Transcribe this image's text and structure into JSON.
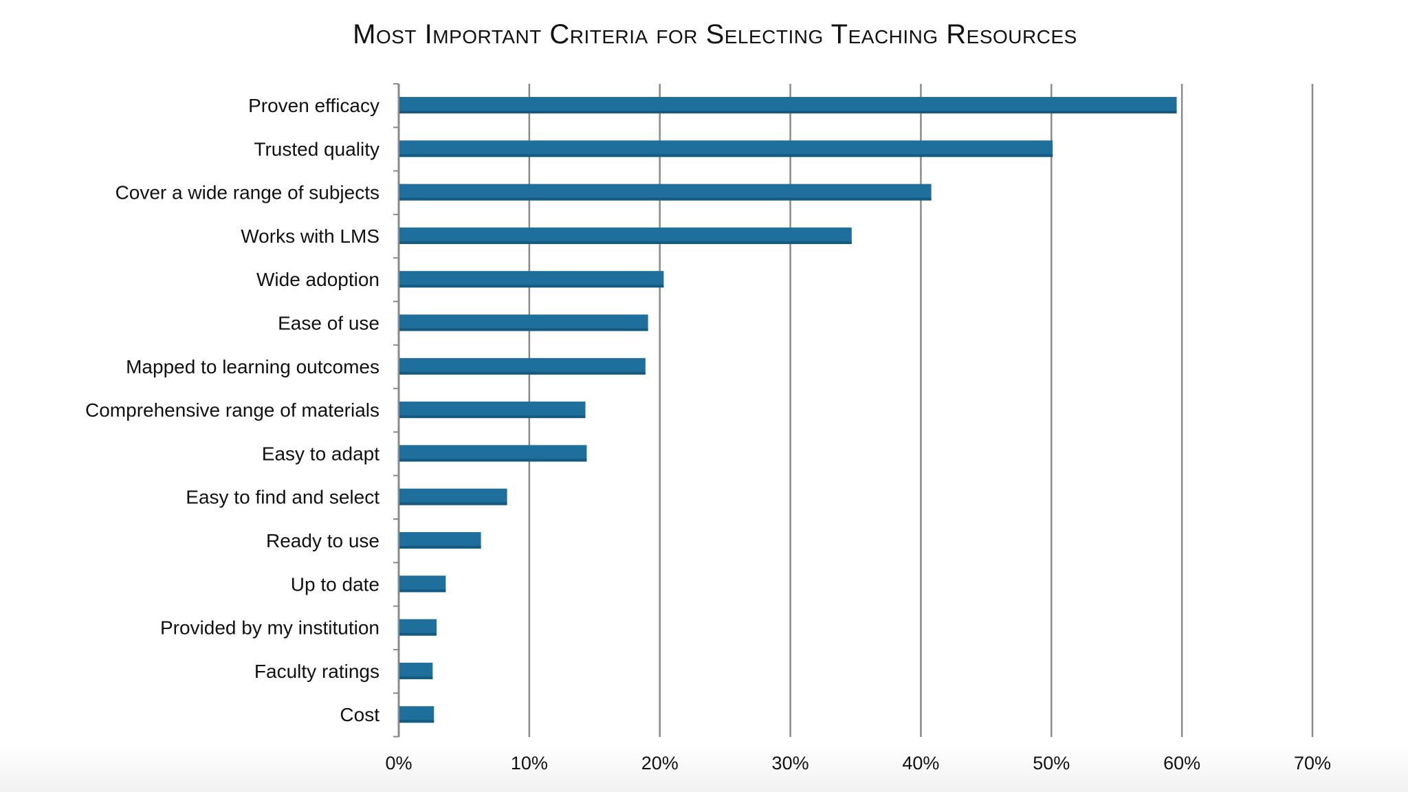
{
  "chart_data": {
    "type": "bar",
    "orientation": "horizontal",
    "title": "Most Important Criteria for Selecting Teaching Resources",
    "xlabel": "",
    "ylabel": "",
    "xlim": [
      0,
      70
    ],
    "x_ticks": [
      0,
      10,
      20,
      30,
      40,
      50,
      60,
      70
    ],
    "x_tick_labels": [
      "0%",
      "10%",
      "20%",
      "30%",
      "40%",
      "50%",
      "60%",
      "70%"
    ],
    "grid": true,
    "legend": "none",
    "bar_color": "#1f6f9c",
    "categories": [
      "Proven efficacy",
      "Trusted quality",
      "Cover a wide range of subjects",
      "Works with LMS",
      "Wide adoption",
      "Ease of use",
      "Mapped to learning outcomes",
      "Comprehensive range of materials",
      "Easy to adapt",
      "Easy to find and select",
      "Ready to use",
      "Up to date",
      "Provided by my institution",
      "Faculty ratings",
      "Cost"
    ],
    "values": [
      59.6,
      50.1,
      40.8,
      34.7,
      20.3,
      19.1,
      18.9,
      14.3,
      14.4,
      8.3,
      6.3,
      3.6,
      2.9,
      2.6,
      2.7
    ]
  }
}
